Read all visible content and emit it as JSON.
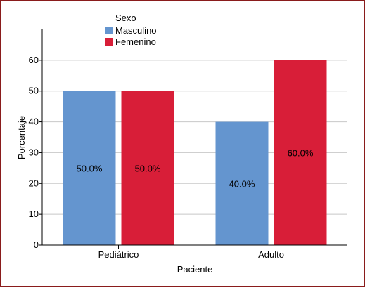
{
  "chart_data": {
    "type": "bar",
    "categories": [
      "Pediátrico",
      "Adulto"
    ],
    "series": [
      {
        "name": "Masculino",
        "values": [
          50,
          40
        ],
        "labels": [
          "50.0%",
          "40.0%"
        ],
        "color": "#6495cf"
      },
      {
        "name": "Femenino",
        "values": [
          50,
          60
        ],
        "labels": [
          "50.0%",
          "60.0%"
        ],
        "color": "#d81e38"
      }
    ],
    "xlabel": "Paciente",
    "ylabel": "Porcentaje",
    "ylim": [
      0,
      70
    ],
    "yticks": [
      "0",
      "10",
      "20",
      "30",
      "40",
      "50",
      "60"
    ],
    "legend": {
      "title": "Sexo",
      "placement": "top-left"
    },
    "grid": true,
    "frame_color": "#8a1c1c"
  }
}
